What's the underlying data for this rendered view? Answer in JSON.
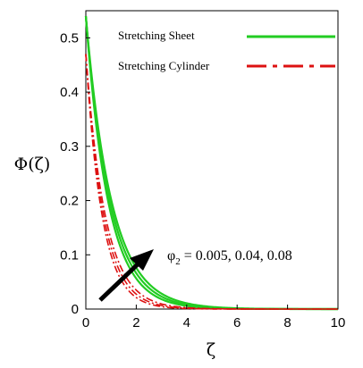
{
  "chart_data": {
    "type": "line",
    "xlabel": "ζ",
    "ylabel": "Φ(ζ)",
    "xlim": [
      0,
      10
    ],
    "ylim": [
      0,
      0.55
    ],
    "xticks": [
      "0",
      "2",
      "4",
      "6",
      "8",
      "10"
    ],
    "yticks": [
      "0",
      "0.1",
      "0.2",
      "0.3",
      "0.4",
      "0.5"
    ],
    "legend_position": "top-right",
    "annotation": {
      "symbol": "φ",
      "subscript": "2",
      "text": " = 0.005, 0.04, 0.08",
      "arrow": "increasing"
    },
    "series": [
      {
        "name": "Stretching Sheet",
        "color": "#22cc22",
        "style": "solid",
        "curves": [
          {
            "y0": 0.54,
            "decay": 1.13
          },
          {
            "y0": 0.54,
            "decay": 1.05
          },
          {
            "y0": 0.54,
            "decay": 0.98
          }
        ]
      },
      {
        "name": "Stretching Cylinder",
        "color": "#dd1111",
        "style": "dash-dot",
        "curves": [
          {
            "y0": 0.47,
            "decay": 1.55
          },
          {
            "y0": 0.47,
            "decay": 1.42
          },
          {
            "y0": 0.47,
            "decay": 1.3
          }
        ]
      }
    ]
  }
}
